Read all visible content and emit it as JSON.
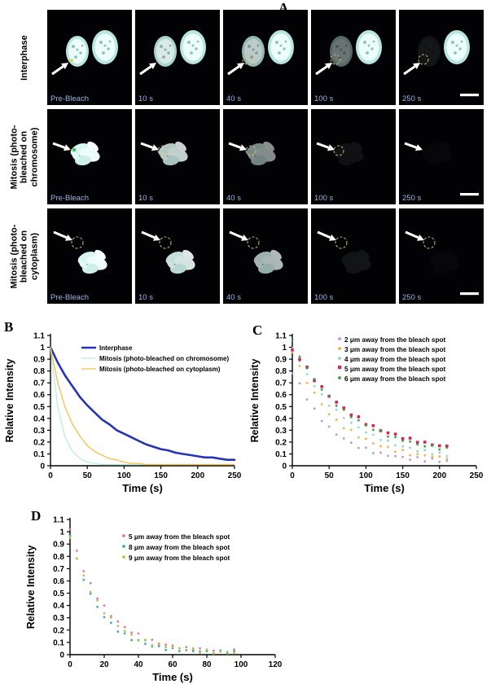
{
  "panels": {
    "a": {
      "label": "A",
      "rows": [
        {
          "label": "Interphase",
          "type": "interphase",
          "frames": [
            {
              "time": "Pre-Bleach",
              "fade": 1,
              "spot": true
            },
            {
              "time": "10 s",
              "fade": 0.92
            },
            {
              "time": "40 s",
              "fade": 0.8,
              "dashed": true
            },
            {
              "time": "100 s",
              "fade": 0.45,
              "dashed": true
            },
            {
              "time": "250 s",
              "fade": 0.08,
              "dashed": true,
              "scalebar": true
            }
          ]
        },
        {
          "label": "Mitosis (photo-bleached on chromosome)",
          "type": "chromosome",
          "frames": [
            {
              "time": "Pre-Bleach",
              "fade": 1,
              "spot": true
            },
            {
              "time": "10 s",
              "fade": 0.82,
              "dashed": true
            },
            {
              "time": "40 s",
              "fade": 0.55,
              "dashed": true
            },
            {
              "time": "100 s",
              "fade": 0.06,
              "dashed": true
            },
            {
              "time": "250 s",
              "fade": 0.02,
              "scalebar": true
            }
          ]
        },
        {
          "label": "Mitosis (photo-bleached on cytoplasm)",
          "type": "cytoplasm",
          "frames": [
            {
              "time": "Pre-Bleach",
              "fade": 1,
              "dashed": true
            },
            {
              "time": "10 s",
              "fade": 0.9,
              "dashed": true
            },
            {
              "time": "40 s",
              "fade": 0.72,
              "dashed": true
            },
            {
              "time": "100 s",
              "fade": 0.07,
              "dashed": true
            },
            {
              "time": "250 s",
              "fade": 0.02,
              "dashed": true,
              "scalebar": true
            }
          ]
        }
      ]
    }
  },
  "chart_data": [
    {
      "panel": "B",
      "type": "line",
      "title": "",
      "xlabel": "Time (s)",
      "ylabel": "Relative Intensity",
      "xlim": [
        0,
        250
      ],
      "ylim": [
        0,
        1.1
      ],
      "xticks": [
        0,
        50,
        100,
        150,
        200,
        250
      ],
      "yticks": [
        0,
        0.1,
        0.2,
        0.3,
        0.4,
        0.5,
        0.6,
        0.7,
        0.8,
        0.9,
        1,
        1.1
      ],
      "grid": false,
      "legend_position": "top-right-inside",
      "x": [
        0,
        10,
        20,
        30,
        40,
        50,
        60,
        70,
        80,
        90,
        100,
        110,
        120,
        130,
        140,
        150,
        160,
        170,
        180,
        190,
        200,
        210,
        220,
        230,
        240,
        250
      ],
      "series": [
        {
          "name": "Interphase",
          "color": "#2433b8",
          "marker": "line",
          "width": 2.6,
          "values": [
            1,
            0.87,
            0.76,
            0.67,
            0.58,
            0.51,
            0.45,
            0.39,
            0.35,
            0.3,
            0.27,
            0.24,
            0.21,
            0.18,
            0.16,
            0.14,
            0.13,
            0.11,
            0.1,
            0.09,
            0.08,
            0.07,
            0.07,
            0.06,
            0.05,
            0.05
          ]
        },
        {
          "name": "Mitosis (photo-bleached on chromosome)",
          "color": "#b7ece6",
          "marker": "line",
          "width": 1.3,
          "values": [
            1,
            0.49,
            0.24,
            0.12,
            0.06,
            0.03,
            0.02,
            0.01,
            0.01,
            0.01,
            0.01,
            0.01,
            0.01,
            0.01,
            0.01,
            0.01,
            0.01,
            0.01,
            0.01,
            0.01,
            0.01,
            0.01,
            0.01,
            0.01,
            0.01,
            0.01
          ]
        },
        {
          "name": "Mitosis (photo-bleached on cytoplasm)",
          "color": "#f3c04a",
          "marker": "line",
          "width": 1.3,
          "values": [
            1,
            0.7,
            0.49,
            0.35,
            0.25,
            0.17,
            0.12,
            0.09,
            0.06,
            0.05,
            0.03,
            0.02,
            0.02,
            0.01,
            0.01,
            0.01,
            0.01,
            0.01,
            0.01,
            0.01,
            0.01,
            0.01,
            0.01,
            0.01,
            0.01,
            0.01
          ]
        }
      ]
    },
    {
      "panel": "C",
      "type": "scatter",
      "title": "",
      "xlabel": "Time (s)",
      "ylabel": "Relative Intensity",
      "xlim": [
        0,
        250
      ],
      "ylim": [
        0,
        1.1
      ],
      "xticks": [
        0,
        50,
        100,
        150,
        200,
        250
      ],
      "yticks": [
        0,
        0.1,
        0.2,
        0.3,
        0.4,
        0.5,
        0.6,
        0.7,
        0.8,
        0.9,
        1,
        1.1
      ],
      "grid": false,
      "legend_position": "top-right-inside",
      "x": [
        0,
        10,
        20,
        30,
        40,
        50,
        60,
        70,
        80,
        90,
        100,
        110,
        120,
        130,
        140,
        150,
        160,
        170,
        180,
        190,
        200,
        210
      ],
      "series": [
        {
          "name": "2 μm away from the bleach spot",
          "color": "#c98fd6",
          "marker": "dot",
          "values": [
            0.78,
            0.69,
            0.57,
            0.47,
            0.39,
            0.32,
            0.27,
            0.23,
            0.19,
            0.16,
            0.14,
            0.12,
            0.1,
            0.09,
            0.08,
            0.07,
            0.06,
            0.06,
            0.05,
            0.05,
            0.04,
            0.04
          ]
        },
        {
          "name": "3 μm away from the bleach spot",
          "color": "#f2b23e",
          "marker": "dot",
          "values": [
            0.97,
            0.83,
            0.71,
            0.61,
            0.52,
            0.44,
            0.38,
            0.33,
            0.29,
            0.25,
            0.22,
            0.19,
            0.17,
            0.15,
            0.13,
            0.12,
            0.1,
            0.09,
            0.09,
            0.08,
            0.07,
            0.07
          ]
        },
        {
          "name": "4 μm away from the bleach spot",
          "color": "#8fd8cf",
          "marker": "dot",
          "values": [
            1,
            0.88,
            0.77,
            0.68,
            0.59,
            0.52,
            0.46,
            0.41,
            0.36,
            0.32,
            0.29,
            0.25,
            0.23,
            0.2,
            0.18,
            0.16,
            0.15,
            0.13,
            0.12,
            0.11,
            0.1,
            0.09
          ]
        },
        {
          "name": "5 μm away from the bleach spot",
          "color": "#cf2757",
          "marker": "square",
          "values": [
            0.97,
            0.91,
            0.82,
            0.73,
            0.66,
            0.59,
            0.54,
            0.48,
            0.44,
            0.4,
            0.36,
            0.33,
            0.3,
            0.28,
            0.26,
            0.24,
            0.22,
            0.21,
            0.19,
            0.18,
            0.17,
            0.16
          ]
        },
        {
          "name": "6 μm away from the bleach spot",
          "color": "#3ba03c",
          "marker": "dot",
          "values": [
            1.05,
            0.93,
            0.82,
            0.73,
            0.65,
            0.58,
            0.52,
            0.46,
            0.42,
            0.38,
            0.34,
            0.31,
            0.28,
            0.26,
            0.23,
            0.22,
            0.2,
            0.18,
            0.17,
            0.16,
            0.15,
            0.14
          ]
        }
      ]
    },
    {
      "panel": "D",
      "type": "scatter",
      "title": "",
      "xlabel": "Time (s)",
      "ylabel": "Relative Intensity",
      "xlim": [
        0,
        120
      ],
      "ylim": [
        0,
        1.1
      ],
      "xticks": [
        0,
        20,
        40,
        60,
        80,
        100,
        120
      ],
      "yticks": [
        0,
        0.1,
        0.2,
        0.3,
        0.4,
        0.5,
        0.6,
        0.7,
        0.8,
        0.9,
        1,
        1.1
      ],
      "grid": false,
      "legend_position": "top-right-inside",
      "x": [
        0,
        4,
        8,
        12,
        16,
        20,
        24,
        28,
        32,
        36,
        40,
        44,
        48,
        52,
        56,
        60,
        64,
        68,
        72,
        76,
        80,
        84,
        88,
        92,
        96
      ],
      "series": [
        {
          "name": "5 μm away from the bleach spot",
          "color": "#e873ae",
          "marker": "dot",
          "values": [
            1.02,
            0.84,
            0.69,
            0.57,
            0.47,
            0.39,
            0.32,
            0.27,
            0.22,
            0.19,
            0.16,
            0.13,
            0.11,
            0.09,
            0.08,
            0.07,
            0.06,
            0.05,
            0.05,
            0.04,
            0.04,
            0.03,
            0.03,
            0.03,
            0.03
          ]
        },
        {
          "name": "8 μm away from the bleach spot",
          "color": "#3fb29a",
          "marker": "dot",
          "values": [
            0.98,
            0.77,
            0.62,
            0.49,
            0.39,
            0.31,
            0.25,
            0.2,
            0.16,
            0.13,
            0.11,
            0.09,
            0.07,
            0.06,
            0.05,
            0.04,
            0.04,
            0.03,
            0.03,
            0.03,
            0.02,
            0.02,
            0.02,
            0.02,
            0.02
          ]
        },
        {
          "name": "9 μm away from the bleach spot",
          "color": "#b3c641",
          "marker": "dot",
          "values": [
            0.96,
            0.78,
            0.64,
            0.52,
            0.43,
            0.35,
            0.29,
            0.24,
            0.19,
            0.16,
            0.13,
            0.11,
            0.09,
            0.08,
            0.07,
            0.06,
            0.05,
            0.04,
            0.04,
            0.03,
            0.03,
            0.02,
            0.02,
            0.02,
            0.02
          ]
        }
      ]
    }
  ]
}
